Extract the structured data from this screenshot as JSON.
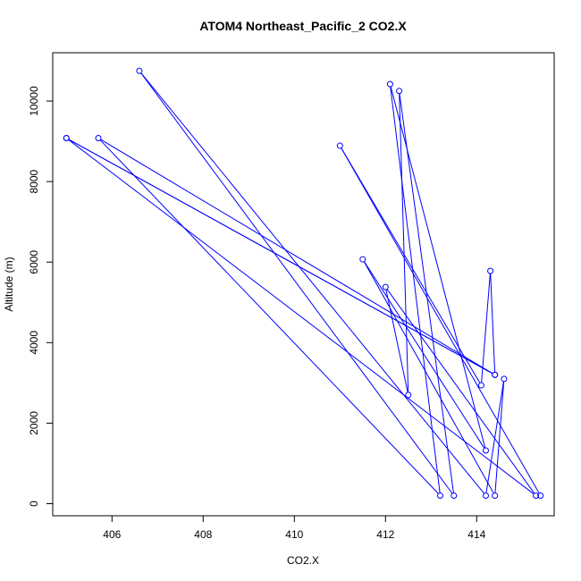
{
  "chart_data": {
    "type": "line",
    "title": "ATOM4 Northeast_Pacific_2 CO2.X",
    "xlabel": "CO2.X",
    "ylabel": "Altitude (m)",
    "xlim": [
      404.7,
      415.7
    ],
    "ylim": [
      -300,
      11200
    ],
    "xticks": [
      406,
      408,
      410,
      412,
      414
    ],
    "yticks": [
      0,
      2000,
      4000,
      6000,
      8000,
      10000
    ],
    "color": "#0000ff",
    "series": [
      {
        "points": [
          {
            "x": 405.0,
            "y": 9080
          },
          {
            "x": 414.4,
            "y": 3200
          },
          {
            "x": 405.7,
            "y": 9080
          },
          {
            "x": 413.2,
            "y": 200
          },
          {
            "x": 412.1,
            "y": 10420
          },
          {
            "x": 414.2,
            "y": 1320
          },
          {
            "x": 411.5,
            "y": 6070
          },
          {
            "x": 414.4,
            "y": 200
          },
          {
            "x": 414.6,
            "y": 3100
          },
          {
            "x": 414.2,
            "y": 200
          },
          {
            "x": 406.6,
            "y": 10750
          },
          {
            "x": 413.5,
            "y": 200
          },
          {
            "x": 412.3,
            "y": 10250
          },
          {
            "x": 412.5,
            "y": 2700
          },
          {
            "x": 412.0,
            "y": 5380
          },
          {
            "x": 415.3,
            "y": 200
          },
          {
            "x": 405.0,
            "y": 9080
          },
          {
            "x": 414.4,
            "y": 3200
          },
          {
            "x": 414.3,
            "y": 5780
          },
          {
            "x": 414.1,
            "y": 2940
          },
          {
            "x": 411.0,
            "y": 8890
          },
          {
            "x": 415.4,
            "y": 200
          }
        ]
      }
    ]
  }
}
